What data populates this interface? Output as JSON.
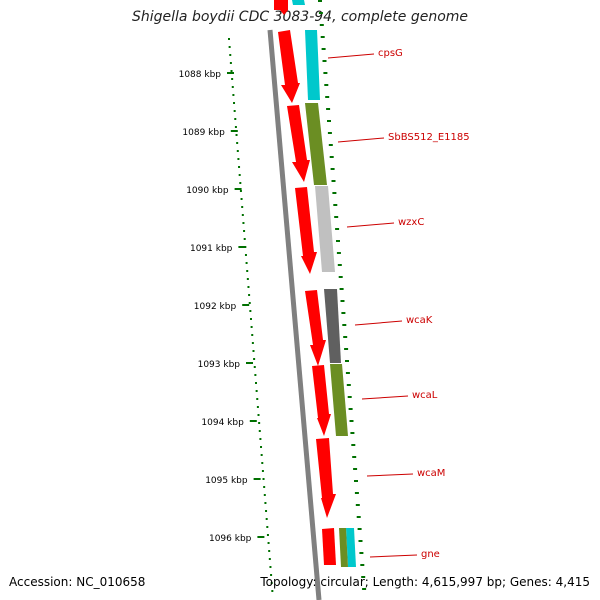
{
  "title": "Shigella boydii CDC 3083-94, complete genome",
  "footer": {
    "accession": "Accession: NC_010658",
    "summary": "Topology: circular; Length: 4,615,997 bp; Genes: 4,415"
  },
  "ruler": {
    "unit": "kbp",
    "ticks": [
      "1088 kbp",
      "1089 kbp",
      "1090 kbp",
      "1091 kbp",
      "1092 kbp",
      "1093 kbp",
      "1094 kbp",
      "1095 kbp",
      "1096 kbp"
    ]
  },
  "genes": [
    {
      "label": "cpsG",
      "color": "#00c8cc"
    },
    {
      "label": "SbBS512_E1185",
      "color": "#6b8e23"
    },
    {
      "label": "wzxC",
      "color": "#c0c0c0"
    },
    {
      "label": "wcaK",
      "color": "#606060"
    },
    {
      "label": "wcaL",
      "color": "#6b8e23"
    },
    {
      "label": "wcaM",
      "color": "#ffffff"
    },
    {
      "label": "gne",
      "color": "#00c8cc"
    }
  ],
  "colors": {
    "cds": "#ff0000",
    "backbone": "#808080",
    "label": "#cc0000",
    "ruler": "#007000"
  }
}
